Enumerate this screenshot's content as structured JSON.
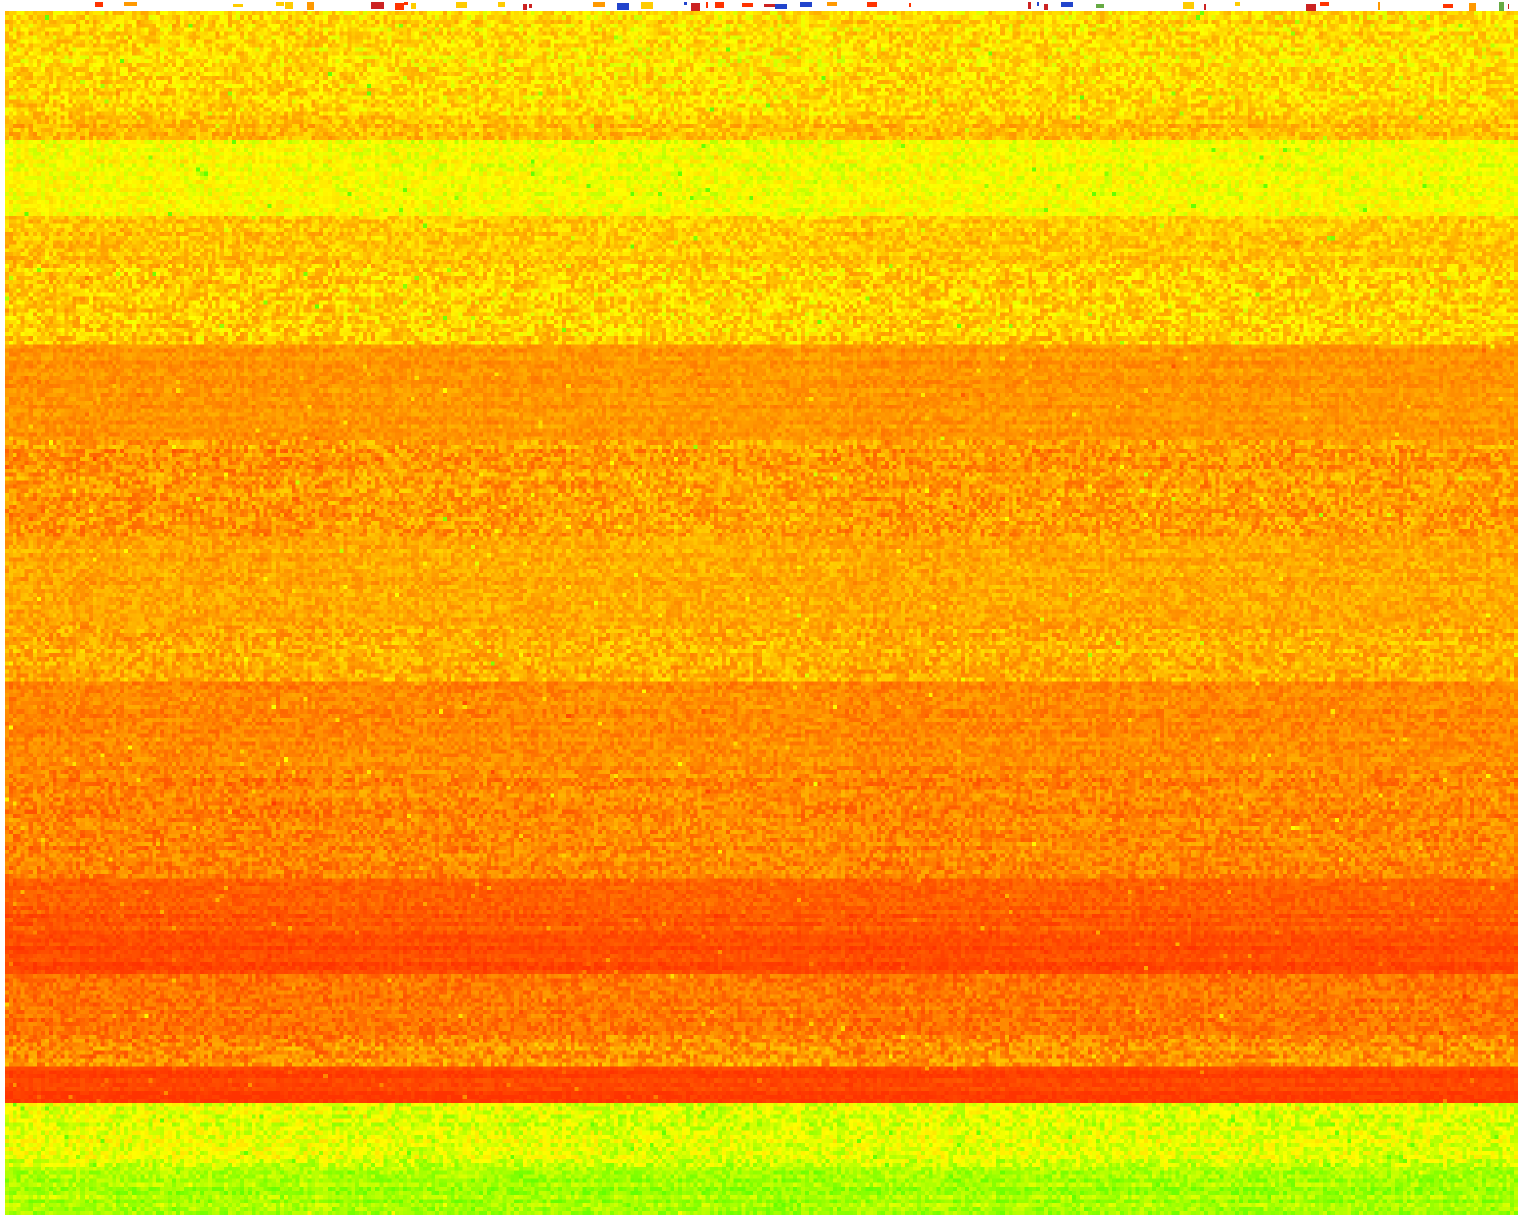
{
  "chart_data": {
    "type": "heatmap",
    "title": "",
    "xlabel": "",
    "ylabel": "",
    "colorscale": [
      "#ff3300",
      "#ff7a00",
      "#ffb800",
      "#ffff00",
      "#66ff00"
    ],
    "value_range": [
      0,
      1
    ],
    "column_groups": [
      {
        "start": 0.0,
        "end": 0.155
      },
      {
        "start": 0.155,
        "end": 0.215
      },
      {
        "start": 0.215,
        "end": 0.345
      },
      {
        "start": 0.345,
        "end": 0.395
      },
      {
        "start": 0.395,
        "end": 0.555
      },
      {
        "start": 0.555,
        "end": 0.625
      },
      {
        "start": 0.625,
        "end": 0.78
      },
      {
        "start": 0.78,
        "end": 1.0
      }
    ],
    "row_bands": [
      {
        "from": 0.0,
        "to": 0.085,
        "level": 0.62,
        "noise": 0.18
      },
      {
        "from": 0.085,
        "to": 0.105,
        "level": 0.52,
        "noise": 0.16
      },
      {
        "from": 0.105,
        "to": 0.17,
        "level": 0.74,
        "noise": 0.1
      },
      {
        "from": 0.17,
        "to": 0.21,
        "level": 0.55,
        "noise": 0.15
      },
      {
        "from": 0.21,
        "to": 0.275,
        "level": 0.57,
        "noise": 0.2
      },
      {
        "from": 0.275,
        "to": 0.355,
        "level": 0.36,
        "noise": 0.1
      },
      {
        "from": 0.355,
        "to": 0.435,
        "level": 0.38,
        "noise": 0.2
      },
      {
        "from": 0.435,
        "to": 0.51,
        "level": 0.44,
        "noise": 0.13
      },
      {
        "from": 0.51,
        "to": 0.555,
        "level": 0.47,
        "noise": 0.18
      },
      {
        "from": 0.555,
        "to": 0.63,
        "level": 0.32,
        "noise": 0.12
      },
      {
        "from": 0.63,
        "to": 0.72,
        "level": 0.3,
        "noise": 0.16
      },
      {
        "from": 0.72,
        "to": 0.765,
        "level": 0.14,
        "noise": 0.08
      },
      {
        "from": 0.765,
        "to": 0.8,
        "level": 0.08,
        "noise": 0.06
      },
      {
        "from": 0.8,
        "to": 0.85,
        "level": 0.24,
        "noise": 0.13
      },
      {
        "from": 0.85,
        "to": 0.875,
        "level": 0.34,
        "noise": 0.2
      },
      {
        "from": 0.875,
        "to": 0.905,
        "level": 0.05,
        "noise": 0.05
      },
      {
        "from": 0.905,
        "to": 0.96,
        "level": 0.8,
        "noise": 0.12
      },
      {
        "from": 0.96,
        "to": 1.0,
        "level": 0.9,
        "noise": 0.08
      }
    ],
    "top_strip": {
      "colors": [
        "#ff3300",
        "#ff9900",
        "#2244cc",
        "#ffcc00",
        "#66aa44",
        "#cc2222"
      ]
    }
  }
}
